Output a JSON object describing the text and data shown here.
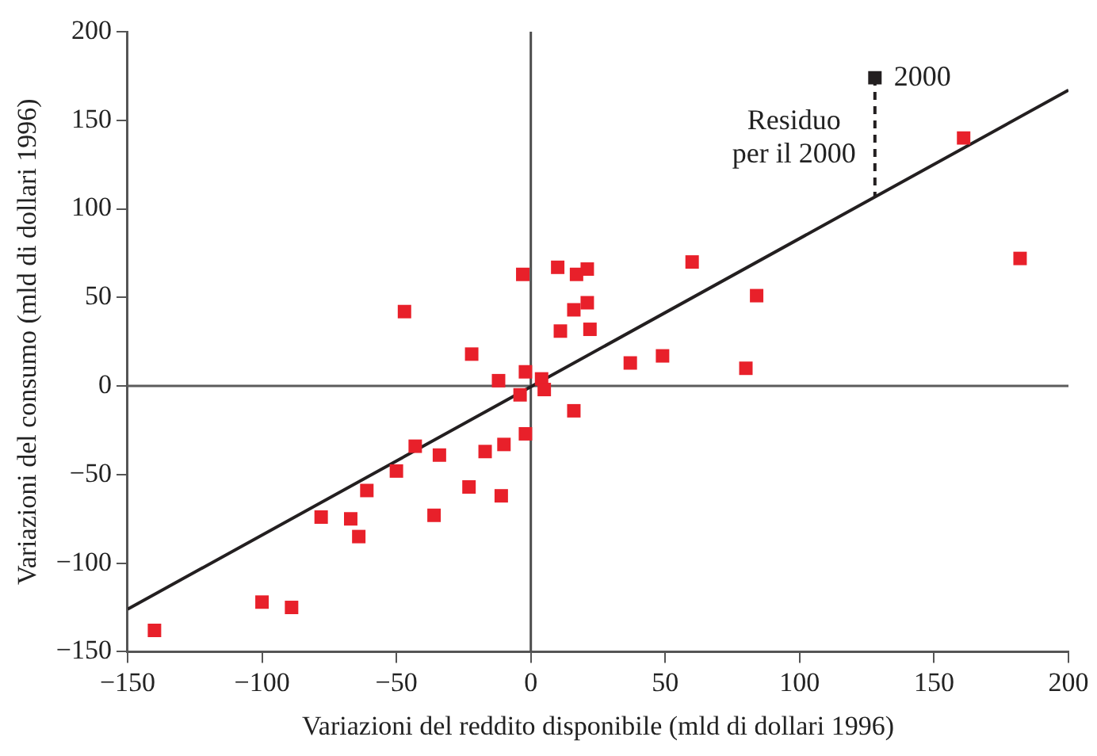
{
  "chart_data": {
    "type": "scatter",
    "xlabel": "Variazioni del reddito disponibile (mld di dollari 1996)",
    "ylabel": "Variazioni del consumo (mld di dollari 1996)",
    "xlim": [
      -150,
      200
    ],
    "xticks": [
      -150,
      -100,
      -50,
      0,
      50,
      100,
      150,
      200
    ],
    "ylim": [
      -150,
      200
    ],
    "yticks": [
      -150,
      -100,
      -50,
      0,
      50,
      100,
      150,
      200
    ],
    "grid": false,
    "legend": false,
    "series": [
      {
        "type": "scatter",
        "marker": "square",
        "color": "#e8202a",
        "x": [
          -140,
          -100,
          -89,
          -78,
          -67,
          -64,
          -61,
          -47,
          -43,
          -34,
          -50,
          -36,
          -23,
          -17,
          -10,
          -11,
          -22,
          -12,
          -3,
          -2,
          -4,
          -2,
          4,
          5,
          10,
          17,
          21,
          21,
          16,
          11,
          22,
          16,
          37,
          49,
          60,
          84,
          80,
          161,
          182
        ],
        "values": [
          -138,
          -122,
          -125,
          -74,
          -75,
          -85,
          -59,
          42,
          -34,
          -39,
          -48,
          -73,
          -57,
          -37,
          -33,
          -62,
          18,
          3,
          63,
          8,
          -5,
          -27,
          4,
          -2,
          67,
          63,
          66,
          47,
          43,
          31,
          32,
          -14,
          13,
          17,
          70,
          51,
          10,
          140,
          72
        ]
      },
      {
        "type": "scatter",
        "marker": "square",
        "color": "#231f20",
        "x": [
          128
        ],
        "values": [
          174
        ]
      },
      {
        "type": "line",
        "marker": "none",
        "line_style": "solid",
        "color": "#231f20",
        "x": [
          -150,
          200
        ],
        "values": [
          -126,
          167
        ]
      },
      {
        "type": "line",
        "marker": "none",
        "line_style": "dashed",
        "color": "#231f20",
        "x": [
          128,
          128
        ],
        "values": [
          174,
          107
        ]
      }
    ],
    "ref_lines": [
      {
        "axis": "x",
        "value": 0,
        "color": "#4d4d4d"
      },
      {
        "axis": "y",
        "value": 0,
        "color": "#5c5c5c"
      }
    ],
    "annotations": [
      {
        "text": "2000",
        "x": 128,
        "y": 174
      },
      {
        "text": "Residuo per il 2000",
        "x": 128,
        "y": 140
      }
    ]
  }
}
